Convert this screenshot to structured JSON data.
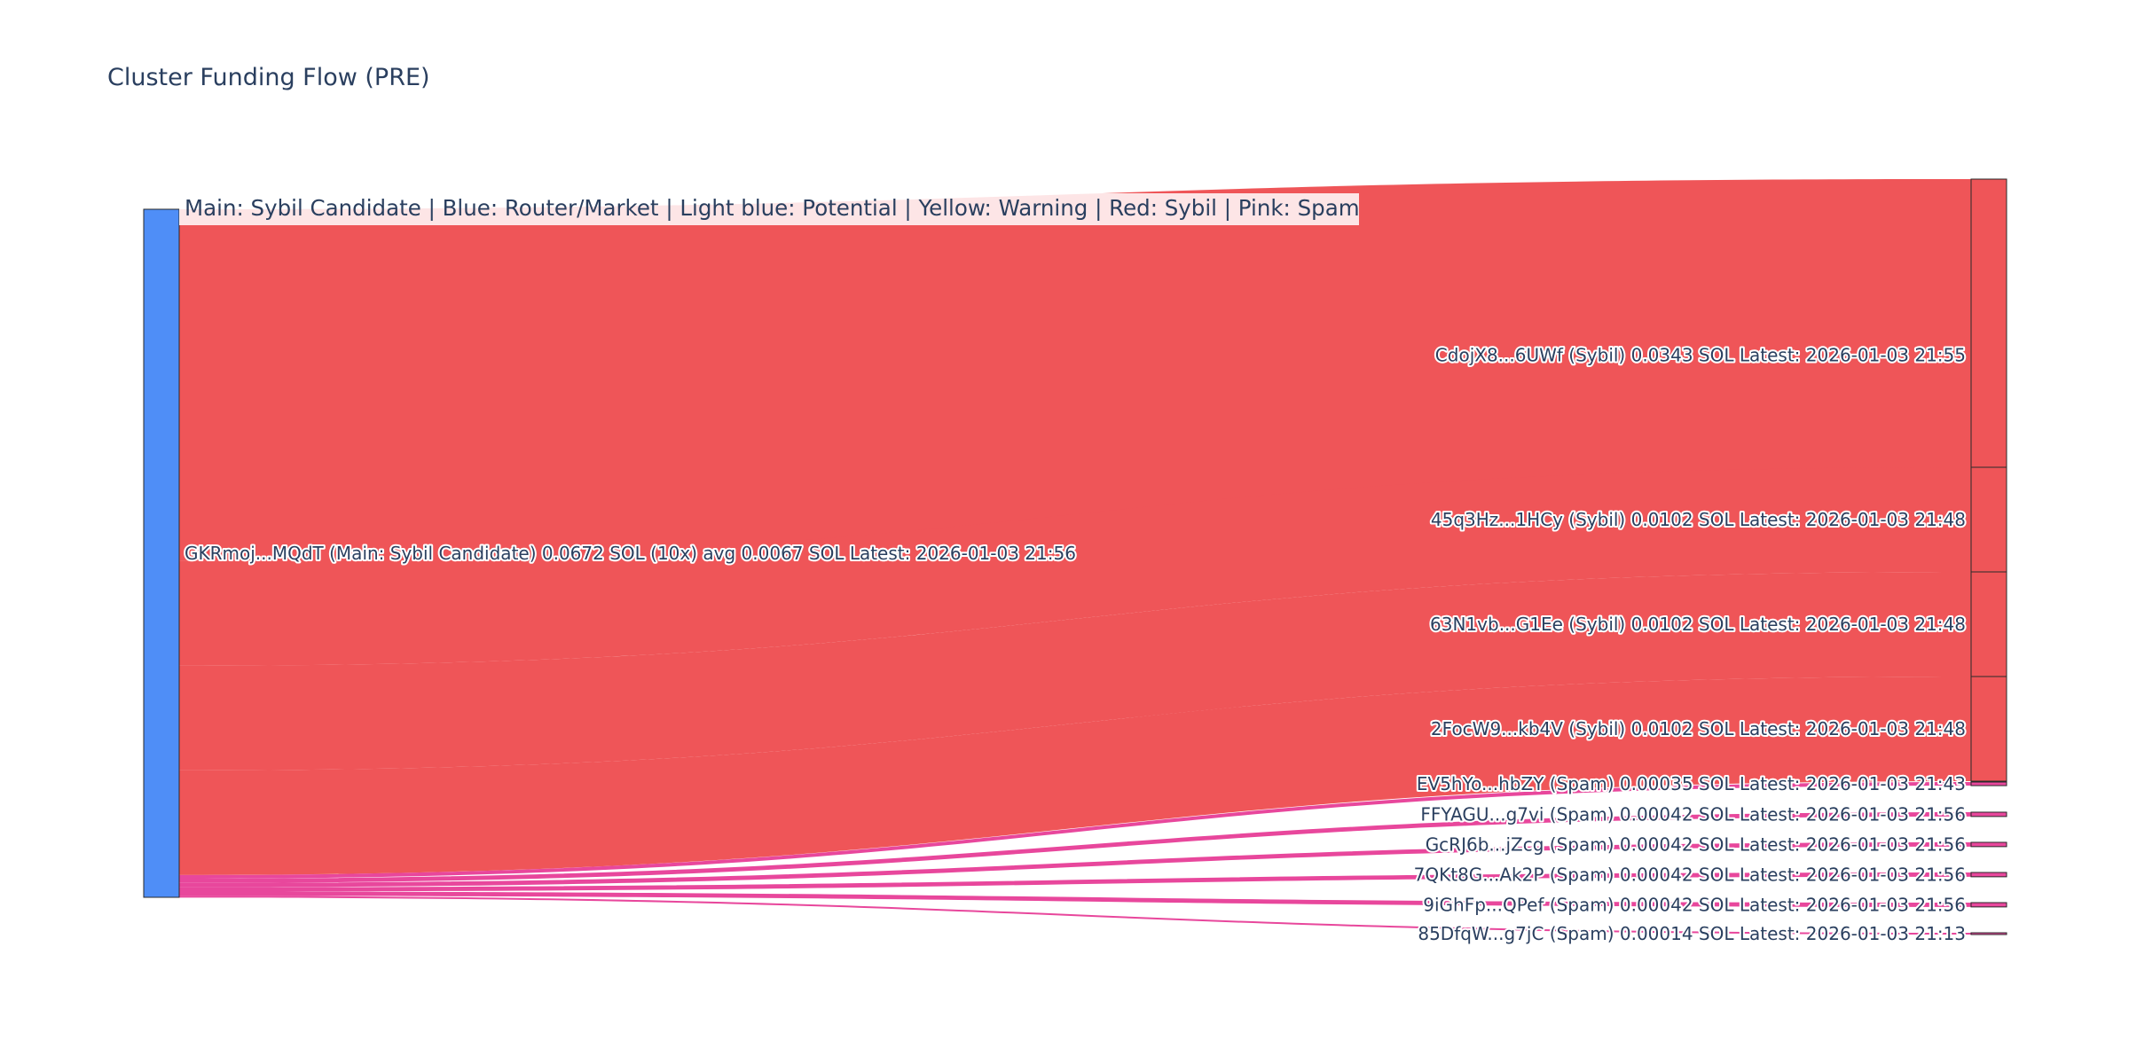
{
  "chart_data": {
    "type": "sankey",
    "title": "Cluster Funding Flow (PRE)",
    "legend_note": "Main: Sybil Candidate  |  Blue: Router/Market | Light blue: Potential | Yellow: Warning | Red: Sybil | Pink: Spam",
    "colors": {
      "main": "#4f8ef7",
      "sybil": "#ef5558",
      "spam": "#e8479c",
      "node_border": "#2a2a2a"
    },
    "source": {
      "id": "GKRmoj...MQdT",
      "role": "Main: Sybil Candidate",
      "label": "GKRmoj...MQdT (Main: Sybil Candidate) 0.0672 SOL (10x) avg 0.0067 SOL Latest: 2026-01-03 21:56",
      "total_sol": 0.0672
    },
    "targets": [
      {
        "id": "CdojX8...6UWf",
        "category": "sybil",
        "value": 0.0343,
        "label": "CdojX8...6UWf (Sybil) 0.0343 SOL Latest: 2026-01-03 21:55"
      },
      {
        "id": "45q3Hz...1HCy",
        "category": "sybil",
        "value": 0.0102,
        "label": "45q3Hz...1HCy (Sybil) 0.0102 SOL Latest: 2026-01-03 21:48"
      },
      {
        "id": "63N1vb...G1Ee",
        "category": "sybil",
        "value": 0.0102,
        "label": "63N1vb...G1Ee (Sybil) 0.0102 SOL Latest: 2026-01-03 21:48"
      },
      {
        "id": "2FocW9...kb4V",
        "category": "sybil",
        "value": 0.0102,
        "label": "2FocW9...kb4V (Sybil) 0.0102 SOL Latest: 2026-01-03 21:48"
      },
      {
        "id": "EV5hYo...hbZY",
        "category": "spam",
        "value": 0.00035,
        "label": "EV5hYo...hbZY (Spam) 0.00035 SOL Latest: 2026-01-03 21:43"
      },
      {
        "id": "FFYAGU...g7vi",
        "category": "spam",
        "value": 0.00042,
        "label": "FFYAGU...g7vi (Spam) 0.00042 SOL Latest: 2026-01-03 21:56"
      },
      {
        "id": "GcRJ6b...jZcg",
        "category": "spam",
        "value": 0.00042,
        "label": "GcRJ6b...jZcg (Spam) 0.00042 SOL Latest: 2026-01-03 21:56"
      },
      {
        "id": "7QKt8G...Ak2P",
        "category": "spam",
        "value": 0.00042,
        "label": "7QKt8G...Ak2P (Spam) 0.00042 SOL Latest: 2026-01-03 21:56"
      },
      {
        "id": "9iGhFp...QPef",
        "category": "spam",
        "value": 0.00042,
        "label": "9iGhFp...QPef (Spam) 0.00042 SOL Latest: 2026-01-03 21:56"
      },
      {
        "id": "85DfqW...g7jC",
        "category": "spam",
        "value": 0.00014,
        "label": "85DfqW...g7jC (Spam) 0.00014 SOL Latest: 2026-01-03 21:13"
      }
    ]
  }
}
